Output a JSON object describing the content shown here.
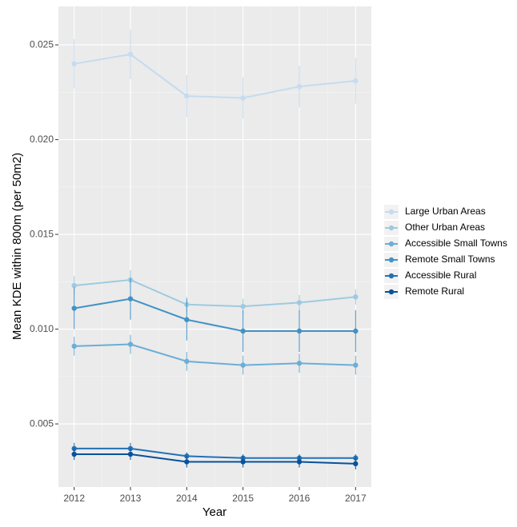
{
  "chart_data": {
    "type": "line",
    "x_label": "Year",
    "y_label": "Mean KDE within 800m (per 50m2)",
    "x": [
      2012,
      2013,
      2014,
      2015,
      2016,
      2017
    ],
    "xlim": [
      2011.72,
      2017.28
    ],
    "xticks": [
      2012,
      2013,
      2014,
      2015,
      2016,
      2017
    ],
    "ylim": [
      0.00167,
      0.02703
    ],
    "yticks": [
      0.005,
      {
        "value": 0.01,
        "label": "0.010"
      },
      0.015,
      {
        "value": 0.02,
        "label": "0.020"
      },
      0.025
    ],
    "grid": true,
    "legend": "right",
    "series": [
      {
        "name": "Large Urban Areas",
        "color": "#c6dbef",
        "values": [
          0.024,
          0.0245,
          0.0223,
          0.0222,
          0.0228,
          0.0231
        ],
        "errors": [
          0.0013,
          0.0013,
          0.0011,
          0.0011,
          0.0011,
          0.0012
        ]
      },
      {
        "name": "Other Urban Areas",
        "color": "#9ecae1",
        "values": [
          0.0123,
          0.0126,
          0.0113,
          0.0112,
          0.0114,
          0.0117
        ],
        "errors": [
          0.0005,
          0.0005,
          0.0004,
          0.0004,
          0.0004,
          0.0004
        ]
      },
      {
        "name": "Accessible Small Towns",
        "color": "#6baed6",
        "values": [
          0.0091,
          0.0092,
          0.0083,
          0.0081,
          0.0082,
          0.0081
        ],
        "errors": [
          0.0005,
          0.0005,
          0.0005,
          0.0005,
          0.0005,
          0.0005
        ]
      },
      {
        "name": "Remote Small Towns",
        "color": "#4292c6",
        "values": [
          0.0111,
          0.0116,
          0.0105,
          0.0099,
          0.0099,
          0.0099
        ],
        "errors": [
          0.0011,
          0.0011,
          0.0011,
          0.0011,
          0.0011,
          0.0011
        ]
      },
      {
        "name": "Accessible Rural",
        "color": "#2171b5",
        "values": [
          0.0037,
          0.0037,
          0.0033,
          0.0032,
          0.0032,
          0.0032
        ],
        "errors": [
          0.0003,
          0.0003,
          0.0002,
          0.0002,
          0.0002,
          0.0002
        ]
      },
      {
        "name": "Remote Rural",
        "color": "#08519c",
        "values": [
          0.0034,
          0.0034,
          0.003,
          0.003,
          0.003,
          0.0029
        ],
        "errors": [
          0.0003,
          0.0003,
          0.0003,
          0.0003,
          0.0003,
          0.0003
        ]
      }
    ]
  }
}
